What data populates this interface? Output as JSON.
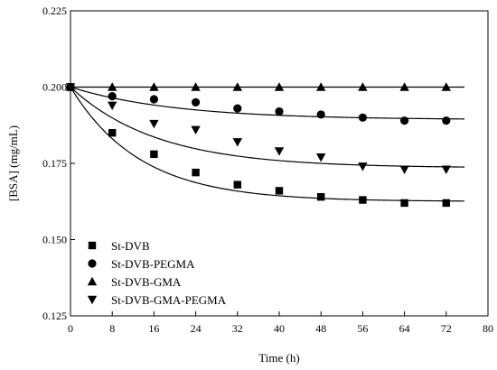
{
  "chart_data": {
    "type": "scatter",
    "title": "",
    "xlabel": "Time (h)",
    "ylabel": "[BSA] (mg/mL)",
    "xlim": [
      0,
      80
    ],
    "ylim": [
      0.125,
      0.225
    ],
    "x_ticks": [
      0,
      8,
      16,
      24,
      32,
      40,
      48,
      56,
      64,
      72,
      80
    ],
    "x_tick_labels": [
      "0",
      "8",
      "16",
      "24",
      "32",
      "40",
      "48",
      "56",
      "64",
      "72",
      "80"
    ],
    "y_ticks": [
      0.125,
      0.15,
      0.175,
      0.2,
      0.225
    ],
    "y_tick_labels": [
      "0.125",
      "0.150",
      "0.175",
      "0.200",
      "0.225"
    ],
    "grid": false,
    "legend_position": "bottom-left",
    "fit_x_max": 75.5,
    "x": [
      0,
      8,
      16,
      24,
      32,
      40,
      48,
      56,
      64,
      72
    ],
    "series": [
      {
        "name": "St-DVB",
        "marker": "square",
        "values": [
          0.2,
          0.185,
          0.178,
          0.172,
          0.168,
          0.166,
          0.164,
          0.163,
          0.162,
          0.162
        ],
        "fit": {
          "plateau": 0.1625,
          "span": 0.0375,
          "k": 0.075
        }
      },
      {
        "name": "St-DVB-PEGMA",
        "marker": "circle",
        "values": [
          0.2,
          0.197,
          0.196,
          0.195,
          0.193,
          0.192,
          0.191,
          0.19,
          0.189,
          0.189
        ],
        "fit": {
          "plateau": 0.1893,
          "span": 0.0107,
          "k": 0.05
        }
      },
      {
        "name": "St-DVB-GMA",
        "marker": "triangle-up",
        "values": [
          0.2,
          0.2,
          0.2,
          0.2,
          0.2,
          0.2,
          0.2,
          0.2,
          0.2,
          0.2
        ],
        "fit": {
          "plateau": 0.2,
          "span": 0.0,
          "k": 0.05
        }
      },
      {
        "name": "St-DVB-GMA-PEGMA",
        "marker": "triangle-down",
        "values": [
          0.2,
          0.194,
          0.188,
          0.186,
          0.182,
          0.179,
          0.177,
          0.174,
          0.173,
          0.173
        ],
        "fit": {
          "plateau": 0.1735,
          "span": 0.0265,
          "k": 0.06
        }
      }
    ]
  }
}
